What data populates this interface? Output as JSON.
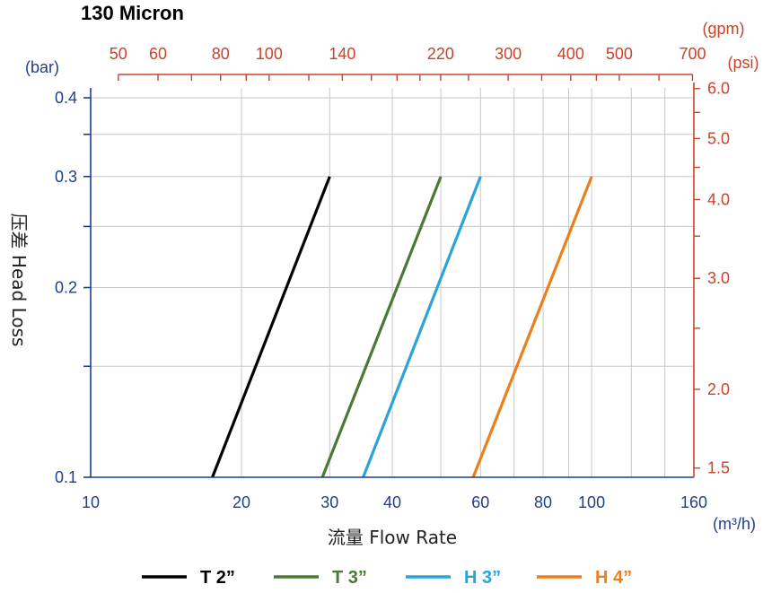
{
  "chart_data": {
    "type": "line",
    "title": "130 Micron",
    "xlabel": "流量 Flow Rate",
    "ylabel": "压差 Head Loss",
    "x_scale": "log",
    "y_scale": "log",
    "xlim": [
      10,
      160
    ],
    "ylim": [
      0.1,
      0.42
    ],
    "x_unit": "(m³/h)",
    "y_unit": "(bar)",
    "x_ticks": [
      10,
      20,
      30,
      40,
      60,
      80,
      100,
      160
    ],
    "y_ticks": [
      0.1,
      0.2,
      0.3,
      0.4
    ],
    "x_gridlines": [
      20,
      30,
      40,
      50,
      60,
      70,
      80,
      90,
      100,
      120,
      140
    ],
    "y_gridlines": [
      0.15,
      0.2,
      0.25,
      0.3,
      0.35,
      0.4
    ],
    "secondary_x": {
      "unit": "(gpm)",
      "ticks": [
        50,
        60,
        80,
        100,
        140,
        220,
        300,
        400,
        500,
        700
      ]
    },
    "secondary_y": {
      "unit": "(psi)",
      "ticks": [
        1.5,
        2.0,
        3.0,
        4.0,
        5.0,
        6.0
      ]
    },
    "grid": true,
    "legend_position": "bottom",
    "series": [
      {
        "name": "T 2”",
        "color": "#000000",
        "x": [
          17.5,
          30
        ],
        "y": [
          0.1,
          0.3
        ]
      },
      {
        "name": "T 3”",
        "color": "#4a7a32",
        "x": [
          29,
          50
        ],
        "y": [
          0.1,
          0.3
        ]
      },
      {
        "name": "H 3”",
        "color": "#2aa3d8",
        "x": [
          35,
          60
        ],
        "y": [
          0.1,
          0.3
        ]
      },
      {
        "name": "H 4”",
        "color": "#ea7f1b",
        "x": [
          58,
          100
        ],
        "y": [
          0.1,
          0.3
        ]
      }
    ],
    "colors": {
      "primary_axis": "#1f3f8a",
      "secondary_axis": "#c8432b",
      "grid": "#c8c8c8"
    }
  }
}
